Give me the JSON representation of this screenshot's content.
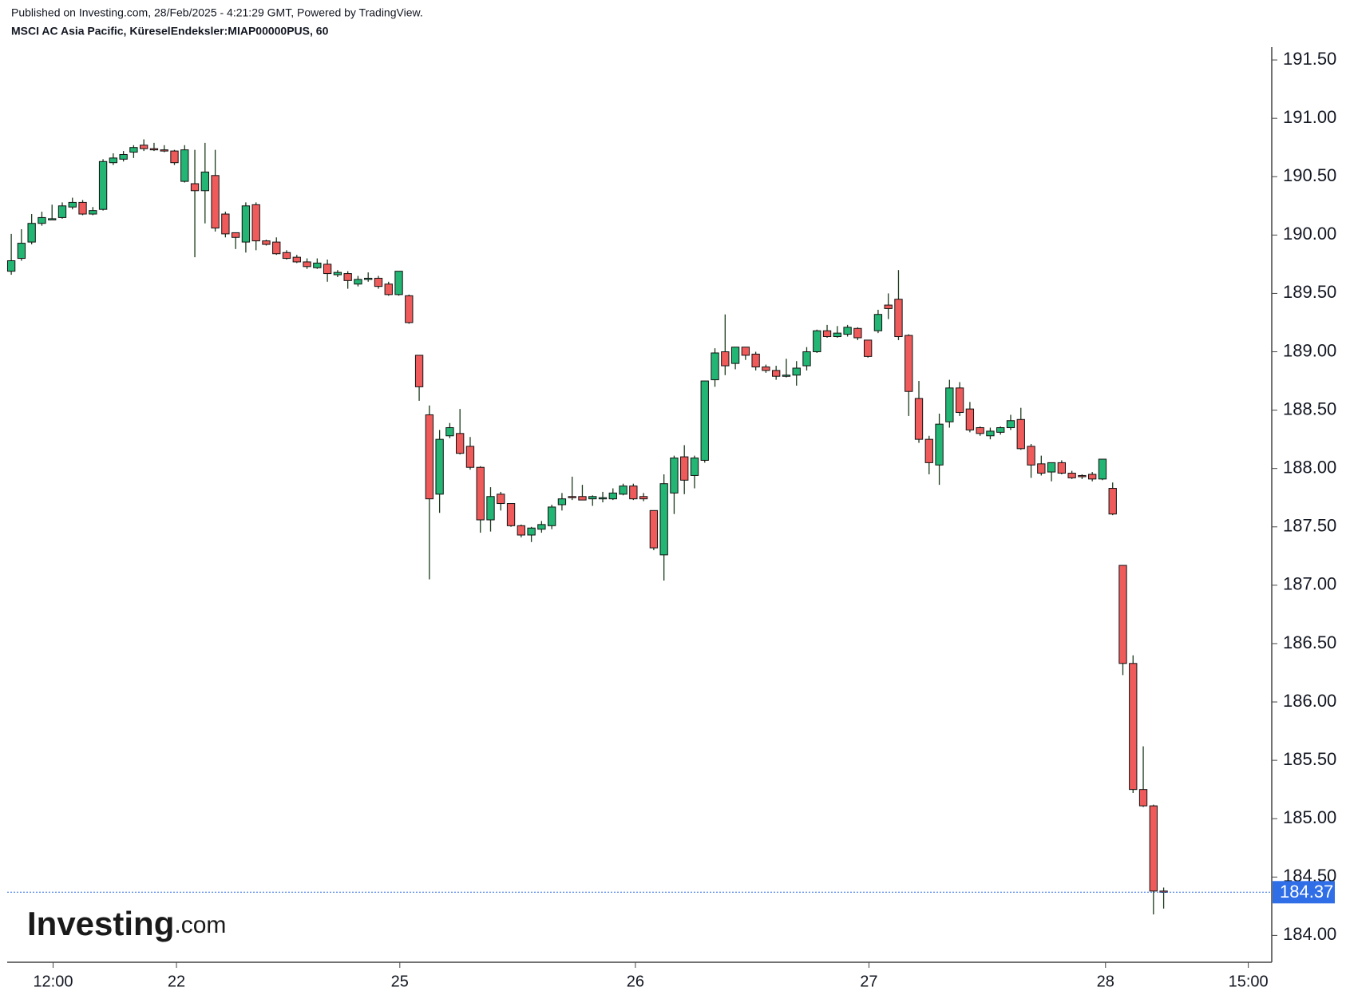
{
  "chart_data": {
    "type": "candlestick",
    "published": "Published on Investing.com, 28/Feb/2025 - 4:21:29 GMT, Powered by TradingView.",
    "title": "MSCI AC Asia Pacific, KüreselEndeksler:MIAP00000PUS, 60",
    "watermark": {
      "brand": "Investing",
      "suffix": ".com"
    },
    "up_color": "#22b573",
    "down_color": "#ef5b5b",
    "last_price": 184.37,
    "last_price_color": "#2f6ee6",
    "xlim": [
      -0.4,
      123.6
    ],
    "xticks": [
      {
        "value": 4.1,
        "label": "12:00"
      },
      {
        "value": 16.2,
        "label": "22"
      },
      {
        "value": 38.1,
        "label": "25"
      },
      {
        "value": 61.2,
        "label": "26"
      },
      {
        "value": 84.1,
        "label": "27"
      },
      {
        "value": 107.3,
        "label": "28"
      },
      {
        "value": 121.3,
        "label": "15:00"
      }
    ],
    "ylim": [
      183.77,
      191.61
    ],
    "yticks": [
      {
        "value": 184.0,
        "label": "184.00"
      },
      {
        "value": 184.5,
        "label": "184.50"
      },
      {
        "value": 185.0,
        "label": "185.00"
      },
      {
        "value": 185.5,
        "label": "185.50"
      },
      {
        "value": 186.0,
        "label": "186.00"
      },
      {
        "value": 186.5,
        "label": "186.50"
      },
      {
        "value": 187.0,
        "label": "187.00"
      },
      {
        "value": 187.5,
        "label": "187.50"
      },
      {
        "value": 188.0,
        "label": "188.00"
      },
      {
        "value": 188.5,
        "label": "188.50"
      },
      {
        "value": 189.0,
        "label": "189.00"
      },
      {
        "value": 189.5,
        "label": "189.50"
      },
      {
        "value": 190.0,
        "label": "190.00"
      },
      {
        "value": 190.5,
        "label": "190.50"
      },
      {
        "value": 191.0,
        "label": "191.00"
      },
      {
        "value": 191.5,
        "label": "191.50"
      }
    ],
    "open": [
      189.69,
      189.8,
      189.94,
      190.1,
      190.13,
      190.15,
      190.24,
      190.28,
      190.18,
      190.22,
      190.62,
      190.65,
      190.71,
      190.77,
      190.74,
      190.73,
      190.72,
      190.46,
      190.44,
      190.38,
      190.51,
      190.18,
      190.02,
      189.94,
      190.26,
      189.95,
      189.94,
      189.85,
      189.81,
      189.77,
      189.72,
      189.75,
      189.66,
      189.67,
      189.58,
      189.63,
      189.63,
      189.58,
      189.49,
      189.48,
      188.97,
      188.46,
      187.78,
      188.28,
      188.3,
      188.19,
      188.01,
      187.56,
      187.78,
      187.7,
      187.51,
      187.43,
      187.48,
      187.51,
      187.69,
      187.76,
      187.76,
      187.74,
      187.74,
      187.74,
      187.78,
      187.85,
      187.76,
      187.64,
      187.26,
      187.79,
      188.1,
      187.94,
      188.07,
      188.76,
      189.0,
      188.9,
      189.04,
      188.98,
      188.87,
      188.84,
      188.79,
      188.8,
      188.88,
      189.0,
      189.18,
      189.13,
      189.15,
      189.2,
      189.1,
      189.18,
      189.4,
      189.45,
      189.14,
      188.6,
      188.25,
      188.03,
      188.4,
      188.69,
      188.51,
      188.35,
      188.28,
      188.31,
      188.35,
      188.42,
      188.19,
      188.04,
      187.97,
      188.05,
      187.96,
      187.94,
      187.95,
      187.91,
      187.83,
      187.17,
      186.33,
      185.25,
      185.11,
      184.38
    ],
    "high": [
      190.01,
      190.05,
      190.18,
      190.2,
      190.26,
      190.28,
      190.32,
      190.3,
      190.24,
      190.65,
      190.7,
      190.72,
      190.77,
      190.82,
      190.79,
      190.77,
      190.73,
      190.77,
      190.73,
      190.79,
      190.73,
      190.2,
      190.02,
      190.28,
      190.28,
      189.96,
      189.98,
      189.87,
      189.83,
      189.8,
      189.8,
      189.79,
      189.7,
      189.69,
      189.65,
      189.68,
      189.65,
      189.6,
      189.69,
      189.49,
      188.97,
      188.54,
      188.33,
      188.39,
      188.51,
      188.27,
      188.02,
      187.84,
      187.8,
      187.7,
      187.52,
      187.5,
      187.55,
      187.69,
      187.79,
      187.93,
      187.86,
      187.77,
      187.8,
      187.83,
      187.87,
      187.87,
      187.79,
      187.64,
      187.95,
      188.11,
      188.2,
      188.11,
      188.75,
      189.03,
      189.32,
      189.04,
      189.04,
      189.0,
      188.89,
      188.88,
      188.94,
      188.92,
      189.04,
      189.19,
      189.23,
      189.22,
      189.23,
      189.21,
      189.1,
      189.36,
      189.5,
      189.7,
      189.15,
      188.75,
      188.28,
      188.47,
      188.76,
      188.74,
      188.57,
      188.36,
      188.35,
      188.36,
      188.46,
      188.52,
      188.21,
      188.11,
      188.05,
      188.07,
      187.98,
      187.95,
      187.97,
      188.08,
      187.88,
      187.17,
      186.4,
      185.62,
      185.12,
      184.41
    ],
    "low": [
      189.66,
      189.78,
      189.92,
      190.08,
      190.13,
      190.14,
      190.22,
      190.17,
      190.17,
      190.21,
      190.6,
      190.63,
      190.66,
      190.72,
      190.72,
      190.71,
      190.6,
      190.45,
      189.81,
      190.1,
      190.03,
      189.98,
      189.88,
      189.85,
      189.87,
      189.91,
      189.83,
      189.79,
      189.76,
      189.71,
      189.71,
      189.6,
      189.64,
      189.54,
      189.56,
      189.6,
      189.54,
      189.48,
      189.48,
      189.24,
      188.58,
      187.05,
      187.62,
      188.26,
      188.12,
      187.99,
      187.45,
      187.46,
      187.64,
      187.5,
      187.41,
      187.37,
      187.45,
      187.48,
      187.64,
      187.73,
      187.73,
      187.68,
      187.71,
      187.73,
      187.77,
      187.73,
      187.72,
      187.3,
      187.04,
      187.61,
      187.78,
      187.83,
      188.05,
      188.7,
      188.8,
      188.85,
      188.93,
      188.84,
      188.82,
      188.76,
      188.78,
      188.71,
      188.84,
      188.99,
      189.12,
      189.12,
      189.13,
      189.1,
      188.95,
      189.16,
      189.28,
      189.1,
      188.45,
      188.22,
      187.95,
      187.86,
      188.35,
      188.45,
      188.31,
      188.28,
      188.25,
      188.29,
      188.33,
      188.16,
      187.92,
      187.94,
      187.89,
      187.95,
      187.91,
      187.91,
      187.89,
      187.9,
      187.6,
      186.23,
      185.22,
      185.1,
      184.18,
      184.23
    ],
    "close": [
      189.78,
      189.93,
      190.1,
      190.15,
      190.14,
      190.25,
      190.28,
      190.18,
      190.21,
      190.63,
      190.66,
      190.69,
      190.75,
      190.74,
      190.73,
      190.72,
      190.62,
      190.73,
      190.38,
      190.54,
      190.06,
      190.01,
      189.98,
      190.25,
      189.95,
      189.92,
      189.84,
      189.8,
      189.77,
      189.73,
      189.76,
      189.67,
      189.68,
      189.61,
      189.62,
      189.63,
      189.56,
      189.49,
      189.69,
      189.25,
      188.7,
      187.74,
      188.25,
      188.35,
      188.13,
      188.01,
      187.56,
      187.76,
      187.7,
      187.51,
      187.43,
      187.49,
      187.52,
      187.67,
      187.74,
      187.75,
      187.73,
      187.76,
      187.75,
      187.79,
      187.85,
      187.74,
      187.74,
      187.32,
      187.87,
      188.09,
      187.9,
      188.09,
      188.75,
      188.99,
      188.88,
      189.04,
      188.97,
      188.87,
      188.84,
      188.79,
      188.8,
      188.86,
      189.0,
      189.18,
      189.13,
      189.16,
      189.21,
      189.12,
      188.96,
      189.32,
      189.37,
      189.13,
      188.66,
      188.25,
      188.05,
      188.38,
      188.69,
      188.48,
      188.33,
      188.3,
      188.32,
      188.35,
      188.41,
      188.17,
      188.03,
      187.96,
      188.05,
      187.96,
      187.92,
      187.93,
      187.91,
      188.08,
      187.61,
      186.33,
      185.25,
      185.11,
      184.38,
      184.37
    ]
  }
}
